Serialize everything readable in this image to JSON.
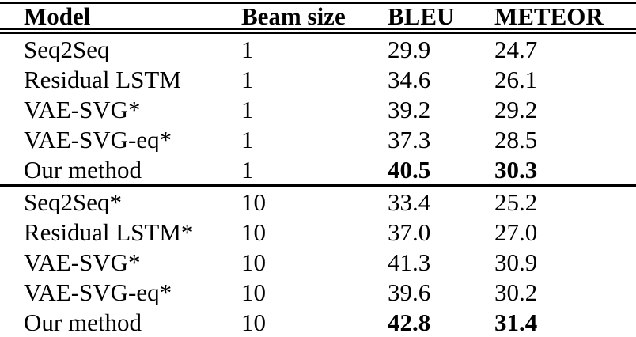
{
  "table": {
    "columns": [
      {
        "key": "model",
        "label": "Model"
      },
      {
        "key": "beam",
        "label": "Beam size"
      },
      {
        "key": "bleu",
        "label": "BLEU"
      },
      {
        "key": "meteor",
        "label": "METEOR"
      }
    ],
    "groups": [
      {
        "rows": [
          {
            "model": "Seq2Seq",
            "beam": "1",
            "bleu": "29.9",
            "meteor": "24.7",
            "bold_scores": false
          },
          {
            "model": "Residual LSTM",
            "beam": "1",
            "bleu": "34.6",
            "meteor": "26.1",
            "bold_scores": false
          },
          {
            "model": "VAE-SVG*",
            "beam": "1",
            "bleu": "39.2",
            "meteor": "29.2",
            "bold_scores": false
          },
          {
            "model": "VAE-SVG-eq*",
            "beam": "1",
            "bleu": "37.3",
            "meteor": "28.5",
            "bold_scores": false
          },
          {
            "model": "Our method",
            "beam": "1",
            "bleu": "40.5",
            "meteor": "30.3",
            "bold_scores": true
          }
        ]
      },
      {
        "rows": [
          {
            "model": "Seq2Seq*",
            "beam": "10",
            "bleu": "33.4",
            "meteor": "25.2",
            "bold_scores": false
          },
          {
            "model": "Residual LSTM*",
            "beam": "10",
            "bleu": "37.0",
            "meteor": "27.0",
            "bold_scores": false
          },
          {
            "model": "VAE-SVG*",
            "beam": "10",
            "bleu": "41.3",
            "meteor": "30.9",
            "bold_scores": false
          },
          {
            "model": "VAE-SVG-eq*",
            "beam": "10",
            "bleu": "39.6",
            "meteor": "30.2",
            "bold_scores": false
          },
          {
            "model": "Our method",
            "beam": "10",
            "bleu": "42.8",
            "meteor": "31.4",
            "bold_scores": true
          }
        ]
      }
    ]
  },
  "colors": {
    "text": "#000000",
    "background": "#ffffff",
    "rule": "#000000"
  }
}
